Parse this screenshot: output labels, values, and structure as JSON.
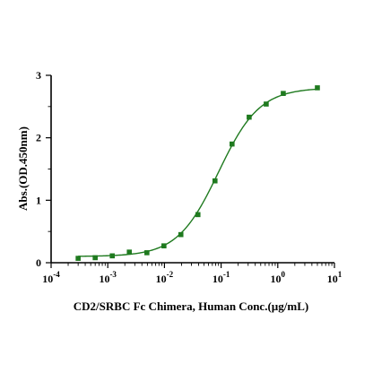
{
  "chart_data": {
    "type": "scatter",
    "xlabel": "CD2/SRBC Fc Chimera, Human  Conc.(µg/mL)",
    "ylabel": "Abs.(OD.450nm)",
    "x_scale": "log",
    "xlim": [
      0.0001,
      10
    ],
    "ylim": [
      0,
      3
    ],
    "x_ticks": [
      {
        "base": "10",
        "exp": "-4",
        "value": 0.0001
      },
      {
        "base": "10",
        "exp": "-3",
        "value": 0.001
      },
      {
        "base": "10",
        "exp": "-2",
        "value": 0.01
      },
      {
        "base": "10",
        "exp": "-1",
        "value": 0.1
      },
      {
        "base": "10",
        "exp": "0",
        "value": 1
      },
      {
        "base": "10",
        "exp": "1",
        "value": 10
      }
    ],
    "y_ticks": [
      {
        "label": "0",
        "value": 0
      },
      {
        "label": "1",
        "value": 1
      },
      {
        "label": "2",
        "value": 2
      },
      {
        "label": "3",
        "value": 3
      }
    ],
    "grid": false,
    "colors": {
      "series": "#1f7a1f"
    },
    "series": [
      {
        "marker": "square",
        "x": [
          0.0003,
          0.0006,
          0.0012,
          0.0024,
          0.0049,
          0.0098,
          0.0195,
          0.039,
          0.078,
          0.156,
          0.3125,
          0.625,
          1.25,
          5
        ],
        "y": [
          0.07,
          0.08,
          0.11,
          0.17,
          0.16,
          0.27,
          0.45,
          0.77,
          1.31,
          1.9,
          2.33,
          2.54,
          2.71,
          2.8
        ]
      }
    ],
    "fit": {
      "type": "4PL sigmoid",
      "bottom": 0.1,
      "top": 2.8,
      "ec50": 0.09,
      "hill": 1.2,
      "x_range": [
        0.0003,
        5
      ]
    }
  }
}
